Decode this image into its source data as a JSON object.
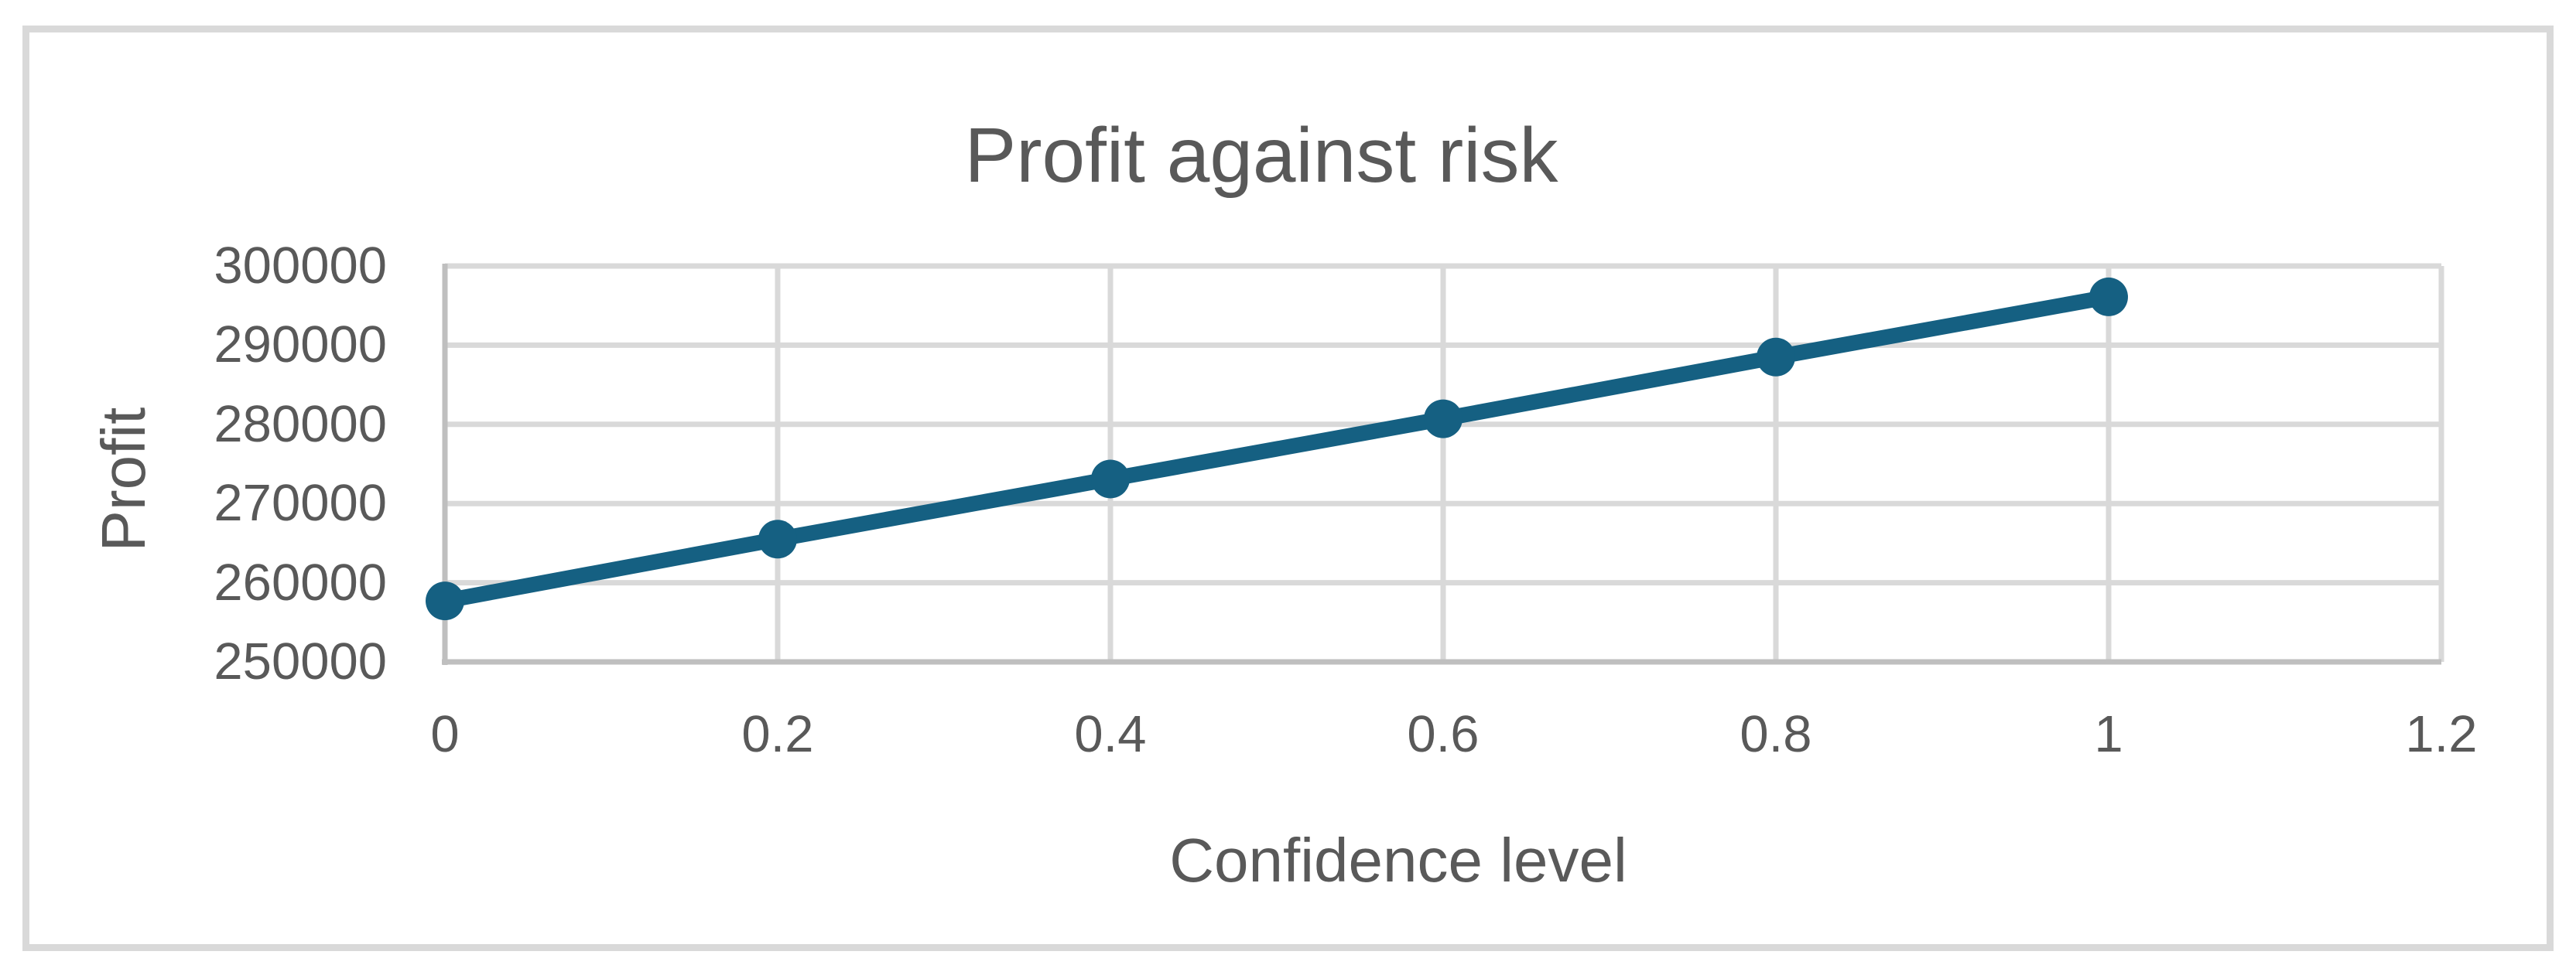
{
  "chart_data": {
    "type": "line",
    "title": "Profit against risk",
    "xlabel": "Confidence level",
    "ylabel": "Profit",
    "x": [
      0,
      0.2,
      0.4,
      0.6,
      0.8,
      1
    ],
    "y": [
      257700,
      265500,
      273100,
      280700,
      288500,
      296100
    ],
    "x_tick_labels": [
      "0",
      "0.2",
      "0.4",
      "0.6",
      "0.8",
      "1",
      "1.2"
    ],
    "y_tick_labels": [
      "300000",
      "290000",
      "280000",
      "270000",
      "260000",
      "250000"
    ],
    "xlim": [
      0,
      1.2
    ],
    "ylim": [
      250000,
      300000
    ],
    "grid": true,
    "legend": "none",
    "marker": "circle",
    "colors": {
      "series": "#156082",
      "gridline": "#D9D9D9",
      "axis_line": "#BFBFBF",
      "text": "#595959",
      "border": "#D9D9D9",
      "background": "#FFFFFF"
    }
  }
}
